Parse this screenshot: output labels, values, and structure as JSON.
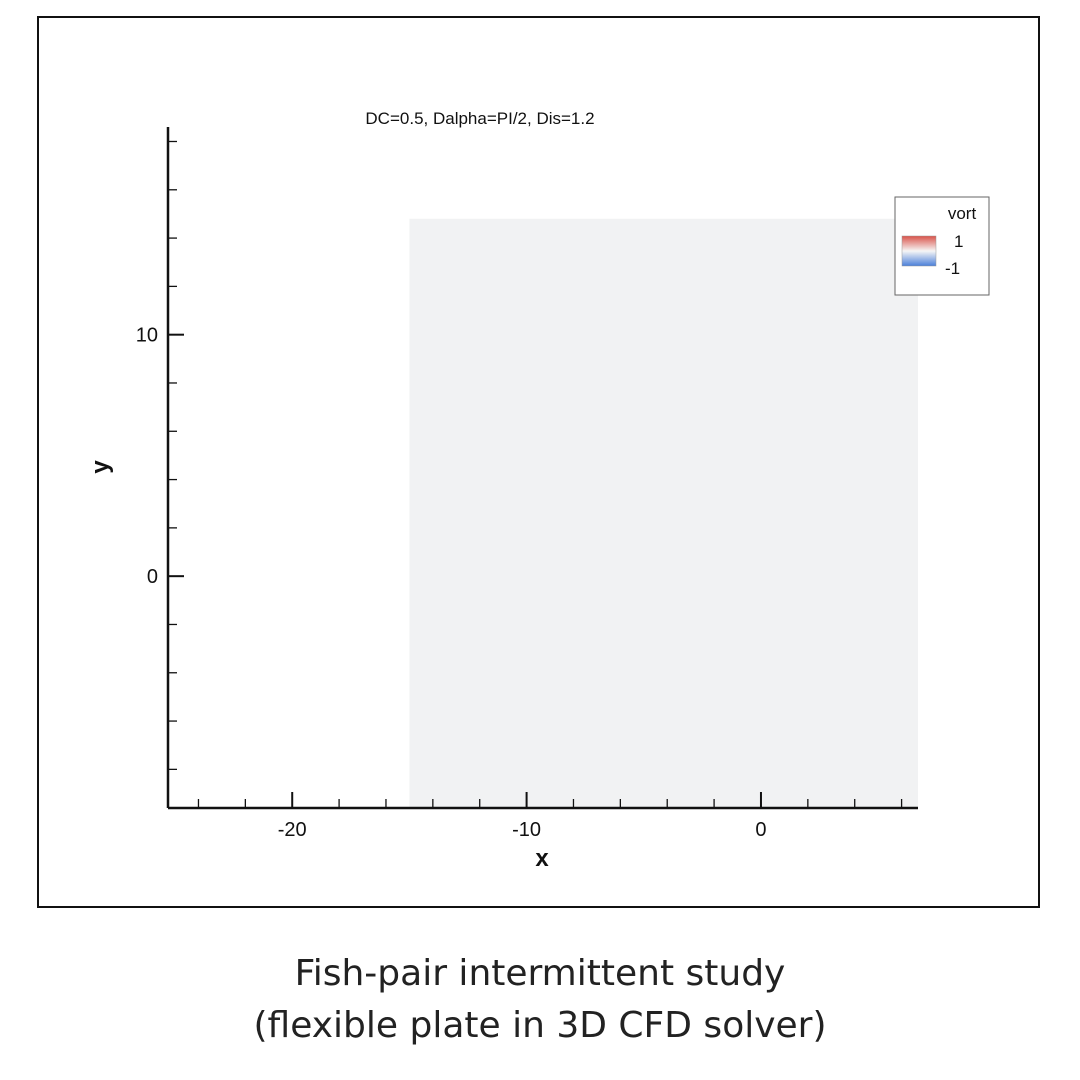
{
  "chart_data": {
    "type": "heatmap",
    "title": "DC=0.5, Dalpha=PI/2, Dis=1.2",
    "xlabel": "x",
    "ylabel": "y",
    "xlim": [
      -25.3,
      6.7
    ],
    "ylim": [
      -9.6,
      18.6
    ],
    "x_ticks": [
      -20,
      -10,
      0
    ],
    "y_ticks": [
      0,
      10
    ],
    "x_minor_step": 2,
    "y_minor_step": 2,
    "field_region": {
      "x": [
        -15,
        6.7
      ],
      "y": [
        -9.6,
        14.8
      ]
    },
    "field_color": "#f1f2f3",
    "legend": {
      "title": "vort",
      "max_label": "1",
      "min_label": "-1",
      "placement": "top-right",
      "colors": [
        "#d9534a",
        "#f6f6f6",
        "#4a7fd9"
      ]
    }
  },
  "caption": {
    "line1": "Fish-pair intermittent study",
    "line2": "(flexible plate in 3D CFD solver)"
  }
}
